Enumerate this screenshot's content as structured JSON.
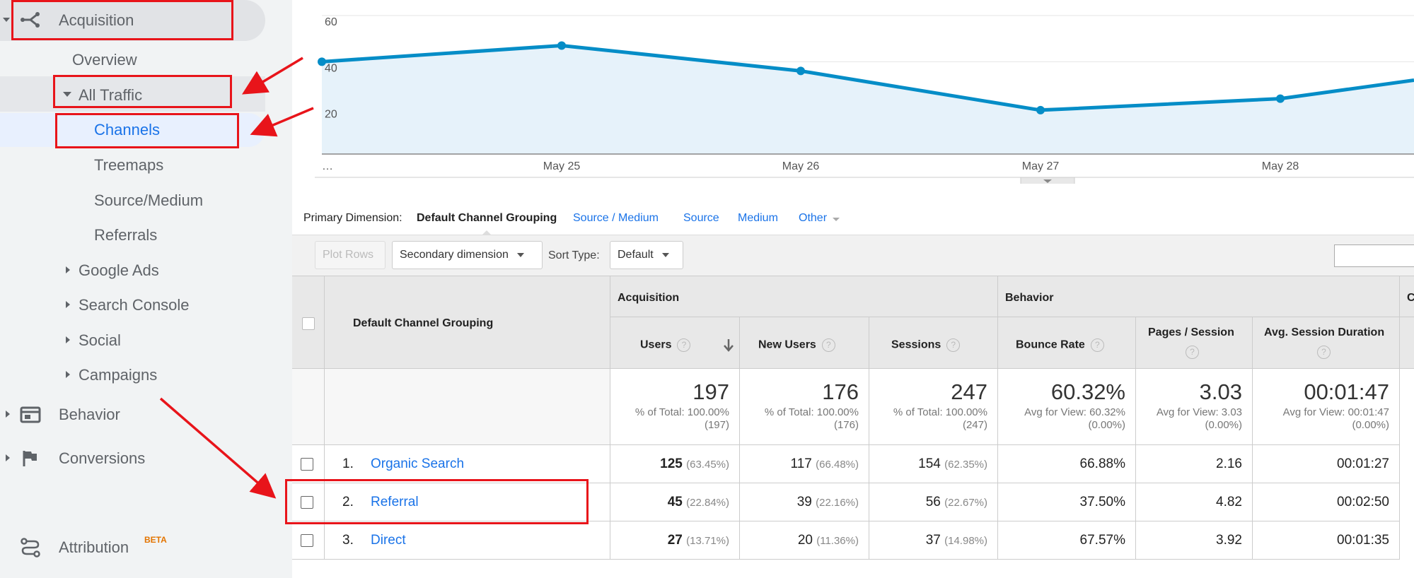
{
  "sidebar": {
    "acquisition": "Acquisition",
    "overview": "Overview",
    "all_traffic": "All Traffic",
    "channels": "Channels",
    "treemaps": "Treemaps",
    "source_medium": "Source/Medium",
    "referrals": "Referrals",
    "google_ads": "Google Ads",
    "search_console": "Search Console",
    "social": "Social",
    "campaigns": "Campaigns",
    "behavior": "Behavior",
    "conversions": "Conversions",
    "attribution": "Attribution",
    "attribution_badge": "BETA"
  },
  "chart_data": {
    "type": "area",
    "x": [
      "…",
      "May 25",
      "May 26",
      "May 27",
      "May 28",
      ""
    ],
    "series": [
      {
        "values": [
          40,
          47,
          36,
          19,
          24,
          32
        ]
      }
    ],
    "ytick_labels": [
      "60",
      "40",
      "20"
    ],
    "ylim": [
      0,
      60
    ],
    "grid": true,
    "color": "#058dc7"
  },
  "dimension_bar": {
    "label": "Primary Dimension:",
    "active": "Default Channel Grouping",
    "links": [
      "Source / Medium",
      "Source",
      "Medium",
      "Other"
    ]
  },
  "toolbar": {
    "plot_rows": "Plot Rows",
    "secondary_dimension": "Secondary dimension",
    "sort_type_label": "Sort Type:",
    "sort_type_value": "Default"
  },
  "table": {
    "group_header": "Default Channel Grouping",
    "acquisition": "Acquisition",
    "behavior": "Behavior",
    "conv_partial": "C",
    "columns": [
      "Users",
      "New Users",
      "Sessions",
      "Bounce Rate",
      "Pages / Session",
      "Avg. Session Duration"
    ],
    "totals": [
      {
        "value": "197",
        "sub1": "% of Total: 100.00%",
        "sub2": "(197)"
      },
      {
        "value": "176",
        "sub1": "% of Total: 100.00%",
        "sub2": "(176)"
      },
      {
        "value": "247",
        "sub1": "% of Total: 100.00%",
        "sub2": "(247)"
      },
      {
        "value": "60.32%",
        "sub1": "Avg for View: 60.32%",
        "sub2": "(0.00%)"
      },
      {
        "value": "3.03",
        "sub1": "Avg for View: 3.03",
        "sub2": "(0.00%)"
      },
      {
        "value": "00:01:47",
        "sub1": "Avg for View: 00:01:47",
        "sub2": "(0.00%)"
      }
    ],
    "rows": [
      {
        "num": "1.",
        "name": "Organic Search",
        "users": "125",
        "users_pct": "(63.45%)",
        "new_users": "117",
        "new_users_pct": "(66.48%)",
        "sessions": "154",
        "sessions_pct": "(62.35%)",
        "bounce": "66.88%",
        "pages": "2.16",
        "duration": "00:01:27"
      },
      {
        "num": "2.",
        "name": "Referral",
        "users": "45",
        "users_pct": "(22.84%)",
        "new_users": "39",
        "new_users_pct": "(22.16%)",
        "sessions": "56",
        "sessions_pct": "(22.67%)",
        "bounce": "37.50%",
        "pages": "4.82",
        "duration": "00:02:50"
      },
      {
        "num": "3.",
        "name": "Direct",
        "users": "27",
        "users_pct": "(13.71%)",
        "new_users": "20",
        "new_users_pct": "(11.36%)",
        "sessions": "37",
        "sessions_pct": "(14.98%)",
        "bounce": "67.57%",
        "pages": "3.92",
        "duration": "00:01:35"
      }
    ]
  },
  "colors": {
    "link": "#1a73e8",
    "annotation": "#e8141a",
    "chart_line": "#058dc7"
  }
}
